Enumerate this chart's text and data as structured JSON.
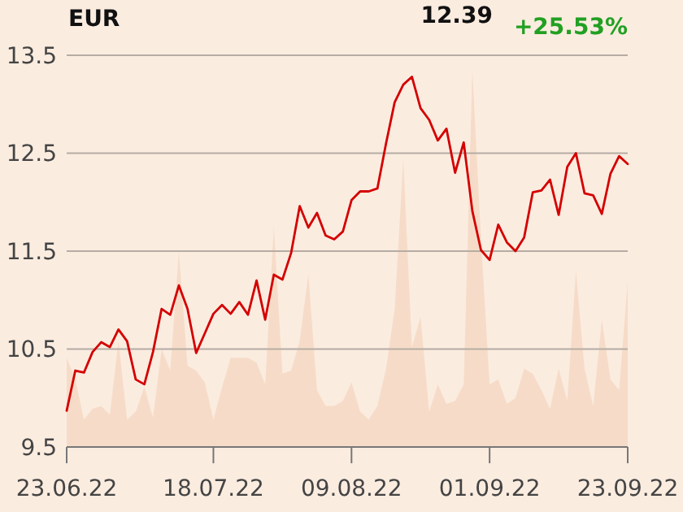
{
  "chart_data": {
    "type": "line",
    "title": "EUR",
    "annotations": [
      "12.39",
      "+25.53%"
    ],
    "categories": [
      "23.06.22",
      null,
      null,
      null,
      null,
      null,
      null,
      null,
      null,
      null,
      null,
      null,
      null,
      null,
      null,
      null,
      null,
      "18.07.22",
      null,
      null,
      null,
      null,
      null,
      null,
      null,
      null,
      null,
      null,
      null,
      null,
      null,
      null,
      null,
      "09.08.22",
      null,
      null,
      null,
      null,
      null,
      null,
      null,
      null,
      null,
      null,
      null,
      null,
      null,
      null,
      null,
      "01.09.22",
      null,
      null,
      null,
      null,
      null,
      null,
      null,
      null,
      null,
      null,
      null,
      null,
      null,
      null,
      null,
      "23.09.22"
    ],
    "series": [
      {
        "type": "area",
        "color": "#f6dcc8",
        "values": [
          10.41,
          10.19,
          9.78,
          9.89,
          9.92,
          9.83,
          10.58,
          9.78,
          9.86,
          10.11,
          9.8,
          10.5,
          10.28,
          11.49,
          10.33,
          10.28,
          10.16,
          9.78,
          10.11,
          10.41,
          10.41,
          10.41,
          10.36,
          10.14,
          11.75,
          10.25,
          10.28,
          10.58,
          11.27,
          10.08,
          9.92,
          9.92,
          9.97,
          10.16,
          9.86,
          9.78,
          9.92,
          10.3,
          10.91,
          12.44,
          10.52,
          10.83,
          9.86,
          10.14,
          9.94,
          9.97,
          10.14,
          13.35,
          11.63,
          10.14,
          10.19,
          9.94,
          10,
          10.3,
          10.25,
          10.08,
          9.89,
          10.3,
          9.97,
          11.3,
          10.3,
          9.92,
          10.8,
          10.19,
          10.08,
          11.19
        ]
      },
      {
        "color": "#d40000",
        "values": [
          9.87,
          10.28,
          10.26,
          10.47,
          10.57,
          10.52,
          10.7,
          10.58,
          10.19,
          10.14,
          10.47,
          10.91,
          10.85,
          11.15,
          10.91,
          10.46,
          10.66,
          10.86,
          10.95,
          10.86,
          10.98,
          10.85,
          11.2,
          10.8,
          11.26,
          11.21,
          11.48,
          11.96,
          11.74,
          11.89,
          11.66,
          11.62,
          11.7,
          12.02,
          12.11,
          12.11,
          12.14,
          12.6,
          13.02,
          13.2,
          13.28,
          12.96,
          12.84,
          12.63,
          12.75,
          12.3,
          12.61,
          11.91,
          11.51,
          11.41,
          11.77,
          11.59,
          11.5,
          11.64,
          12.1,
          12.12,
          12.23,
          11.87,
          12.36,
          12.5,
          12.09,
          12.07,
          11.88,
          12.29,
          12.47,
          12.39
        ]
      }
    ],
    "ylim": [
      9.5,
      13.5
    ],
    "yticks": [
      9.5,
      10.5,
      11.5,
      12.5,
      13.5
    ],
    "grid": "y",
    "line_style": "solid",
    "marker": "none"
  }
}
